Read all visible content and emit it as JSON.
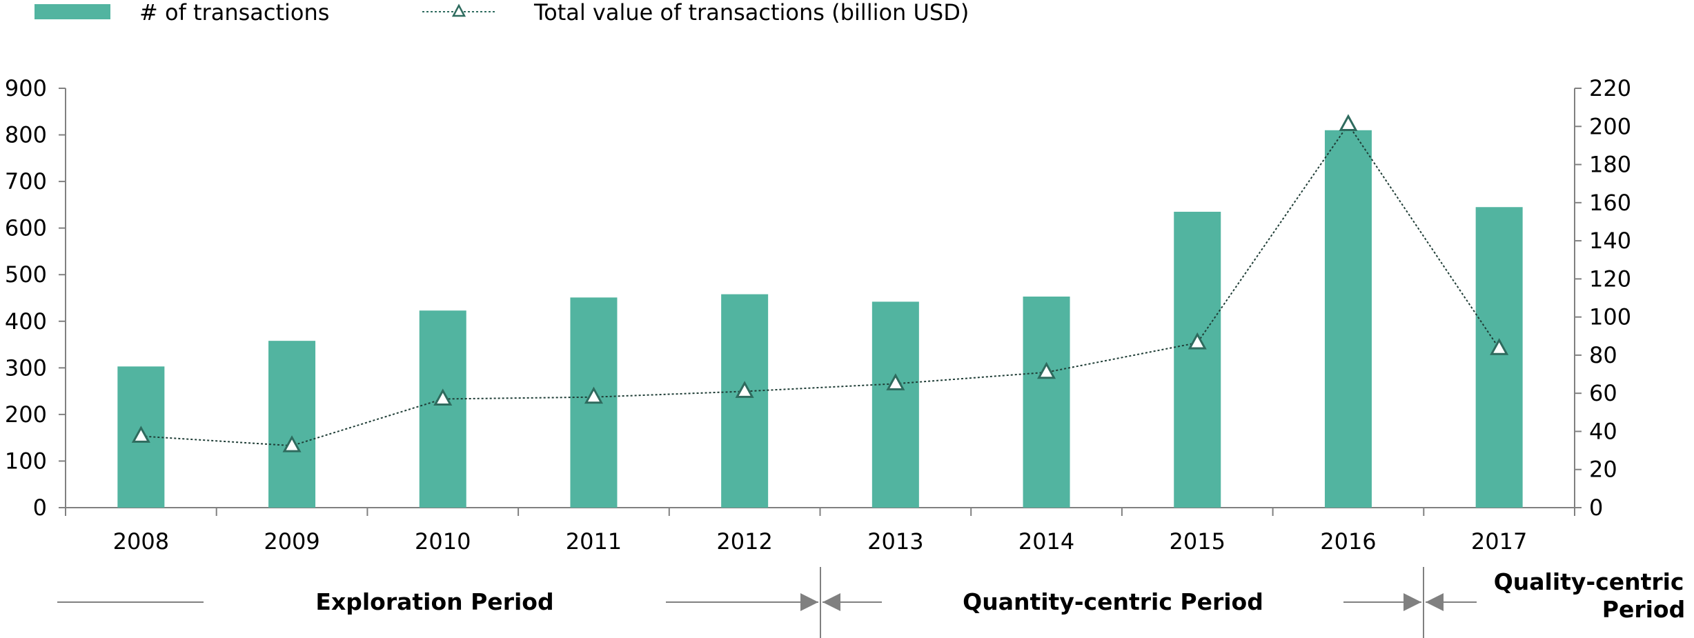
{
  "chart_data": {
    "type": "bar",
    "categories": [
      "2008",
      "2009",
      "2010",
      "2011",
      "2012",
      "2013",
      "2014",
      "2015",
      "2016",
      "2017"
    ],
    "series": [
      {
        "name": "# of transactions",
        "type": "bar",
        "axis": "left",
        "color": "#52B4A0",
        "values": [
          303,
          358,
          423,
          451,
          458,
          442,
          453,
          635,
          810,
          645
        ]
      },
      {
        "name": "Total value of transactions (billion USD)",
        "type": "line",
        "axis": "right",
        "color": "#2E6B5E",
        "line_style": "dotted",
        "marker": "triangle",
        "values": [
          37.5,
          32.5,
          57,
          58,
          61,
          65,
          71,
          86.5,
          201,
          83.5
        ]
      }
    ],
    "y_left": {
      "ylim": [
        0,
        900
      ],
      "ticks": [
        0,
        100,
        200,
        300,
        400,
        500,
        600,
        700,
        800,
        900
      ]
    },
    "y_right": {
      "ylim": [
        0,
        220
      ],
      "ticks": [
        0,
        20,
        40,
        60,
        80,
        100,
        120,
        140,
        160,
        180,
        200,
        220
      ]
    },
    "legend": {
      "position": "top-left"
    },
    "grid": false,
    "annotations": {
      "periods": [
        {
          "label": "Exploration Period",
          "from": "2008",
          "to": "2012"
        },
        {
          "label": "Quantity-centric Period",
          "from": "2013",
          "to": "2016"
        },
        {
          "label": "Quality-centric Period",
          "label_lines": [
            "Quality-centric",
            "Period"
          ],
          "from": "2017",
          "to": "2017"
        }
      ]
    }
  }
}
